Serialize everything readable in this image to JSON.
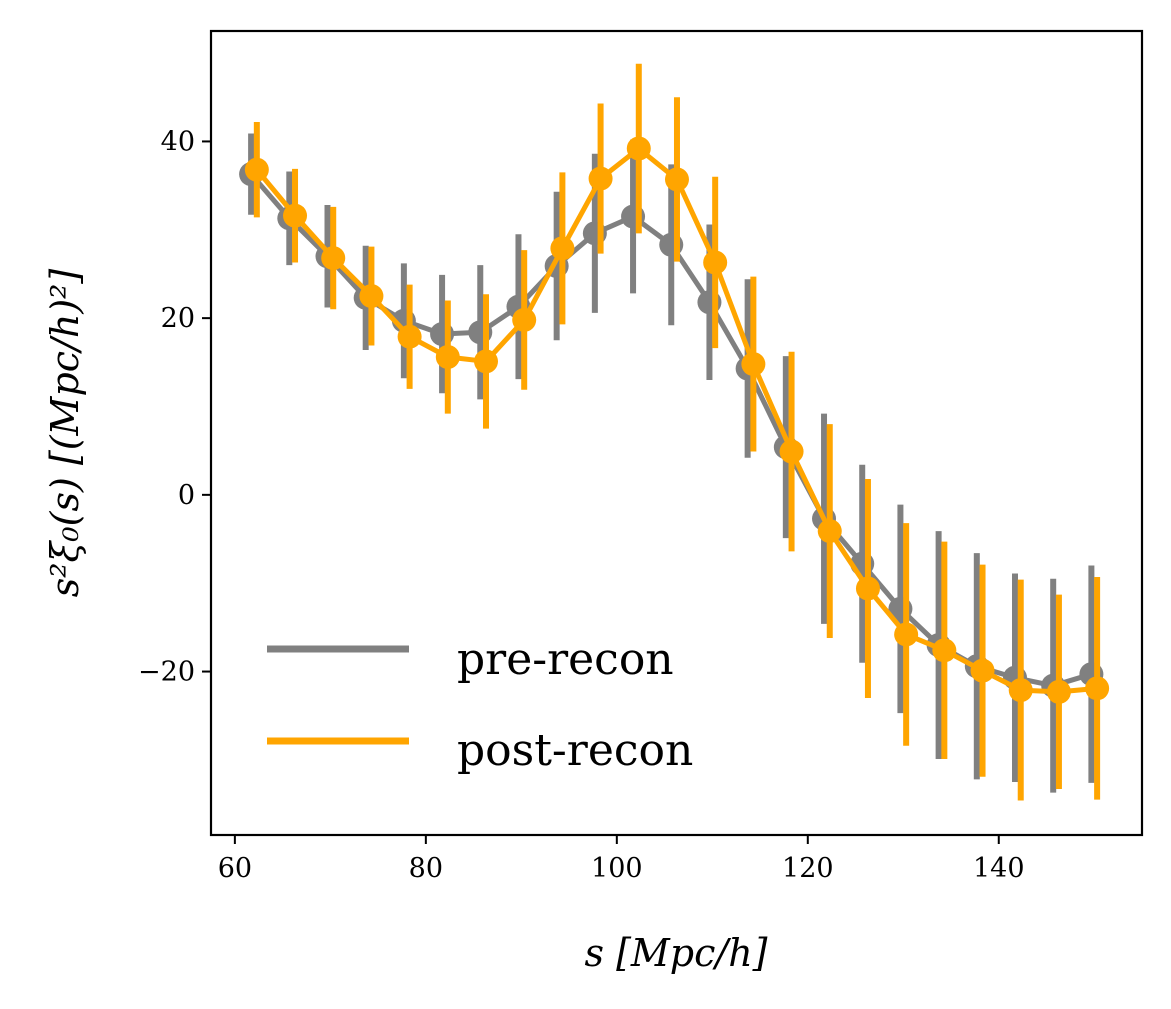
{
  "chart_data": {
    "type": "line",
    "title": "",
    "xlabel": "s [Mpc/h]",
    "ylabel": "s²ξ₀(s) [(Mpc/h)²]",
    "xlim": [
      57.5,
      155
    ],
    "ylim": [
      -38.5,
      52.5
    ],
    "xticks": [
      60,
      80,
      100,
      120,
      140
    ],
    "xtick_labels": [
      "60",
      "80",
      "100",
      "120",
      "140"
    ],
    "yticks": [
      -20,
      0,
      20,
      40
    ],
    "ytick_labels": [
      "−20",
      "0",
      "20",
      "40"
    ],
    "legend_position": "lower-left",
    "grid": false,
    "x": [
      62,
      66,
      70,
      74,
      78,
      82,
      86,
      90,
      94,
      98,
      102,
      106,
      110,
      114,
      118,
      122,
      126,
      130,
      134,
      138,
      142,
      146,
      150
    ],
    "series": [
      {
        "name": "pre-recon",
        "color": "#808080",
        "x_offset": -0.3,
        "values": [
          36.3,
          31.3,
          27.0,
          22.3,
          19.7,
          18.2,
          18.4,
          21.3,
          25.9,
          29.6,
          31.5,
          28.3,
          21.8,
          14.3,
          5.4,
          -2.7,
          -7.8,
          -12.9,
          -17.0,
          -19.4,
          -20.7,
          -21.6,
          -20.3
        ],
        "errors": [
          4.6,
          5.3,
          5.8,
          5.9,
          6.5,
          6.7,
          7.6,
          8.2,
          8.4,
          9.0,
          8.7,
          9.1,
          8.8,
          10.1,
          10.3,
          11.9,
          11.2,
          11.8,
          12.9,
          12.8,
          11.8,
          12.1,
          12.3
        ]
      },
      {
        "name": "post-recon",
        "color": "#ffa500",
        "x_offset": 0.3,
        "values": [
          36.8,
          31.6,
          26.8,
          22.5,
          17.9,
          15.6,
          15.1,
          19.8,
          27.9,
          35.8,
          39.2,
          35.7,
          26.3,
          14.8,
          4.9,
          -4.1,
          -10.6,
          -15.8,
          -17.6,
          -19.9,
          -22.1,
          -22.3,
          -21.9
        ],
        "errors": [
          5.4,
          5.3,
          5.8,
          5.6,
          5.9,
          6.4,
          7.6,
          7.9,
          8.6,
          8.5,
          9.6,
          9.3,
          9.7,
          9.9,
          11.3,
          12.1,
          12.4,
          12.6,
          12.3,
          12.0,
          12.5,
          11.0,
          12.6
        ]
      }
    ]
  }
}
